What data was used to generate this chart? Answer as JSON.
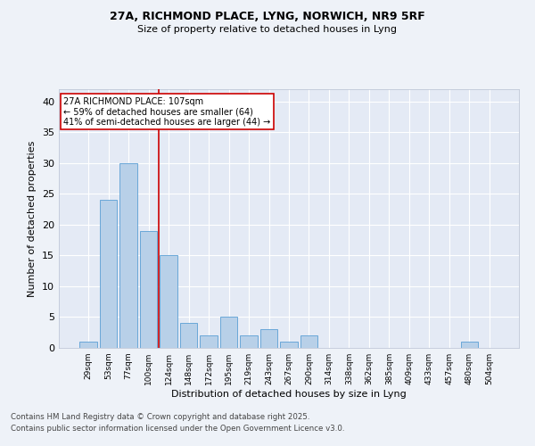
{
  "title1": "27A, RICHMOND PLACE, LYNG, NORWICH, NR9 5RF",
  "title2": "Size of property relative to detached houses in Lyng",
  "xlabel": "Distribution of detached houses by size in Lyng",
  "ylabel": "Number of detached properties",
  "categories": [
    "29sqm",
    "53sqm",
    "77sqm",
    "100sqm",
    "124sqm",
    "148sqm",
    "172sqm",
    "195sqm",
    "219sqm",
    "243sqm",
    "267sqm",
    "290sqm",
    "314sqm",
    "338sqm",
    "362sqm",
    "385sqm",
    "409sqm",
    "433sqm",
    "457sqm",
    "480sqm",
    "504sqm"
  ],
  "values": [
    1,
    24,
    30,
    19,
    15,
    4,
    2,
    5,
    2,
    3,
    1,
    2,
    0,
    0,
    0,
    0,
    0,
    0,
    0,
    1,
    0
  ],
  "bar_color": "#b8d0e8",
  "bar_edge_color": "#5a9fd4",
  "vline_x": 3.5,
  "vline_color": "#cc0000",
  "annotation_text": "27A RICHMOND PLACE: 107sqm\n← 59% of detached houses are smaller (64)\n41% of semi-detached houses are larger (44) →",
  "annotation_box_color": "white",
  "annotation_box_edge": "#cc0000",
  "ylim": [
    0,
    42
  ],
  "yticks": [
    0,
    5,
    10,
    15,
    20,
    25,
    30,
    35,
    40
  ],
  "footnote1": "Contains HM Land Registry data © Crown copyright and database right 2025.",
  "footnote2": "Contains public sector information licensed under the Open Government Licence v3.0.",
  "bg_color": "#eef2f8",
  "plot_bg_color": "#e4eaf5"
}
